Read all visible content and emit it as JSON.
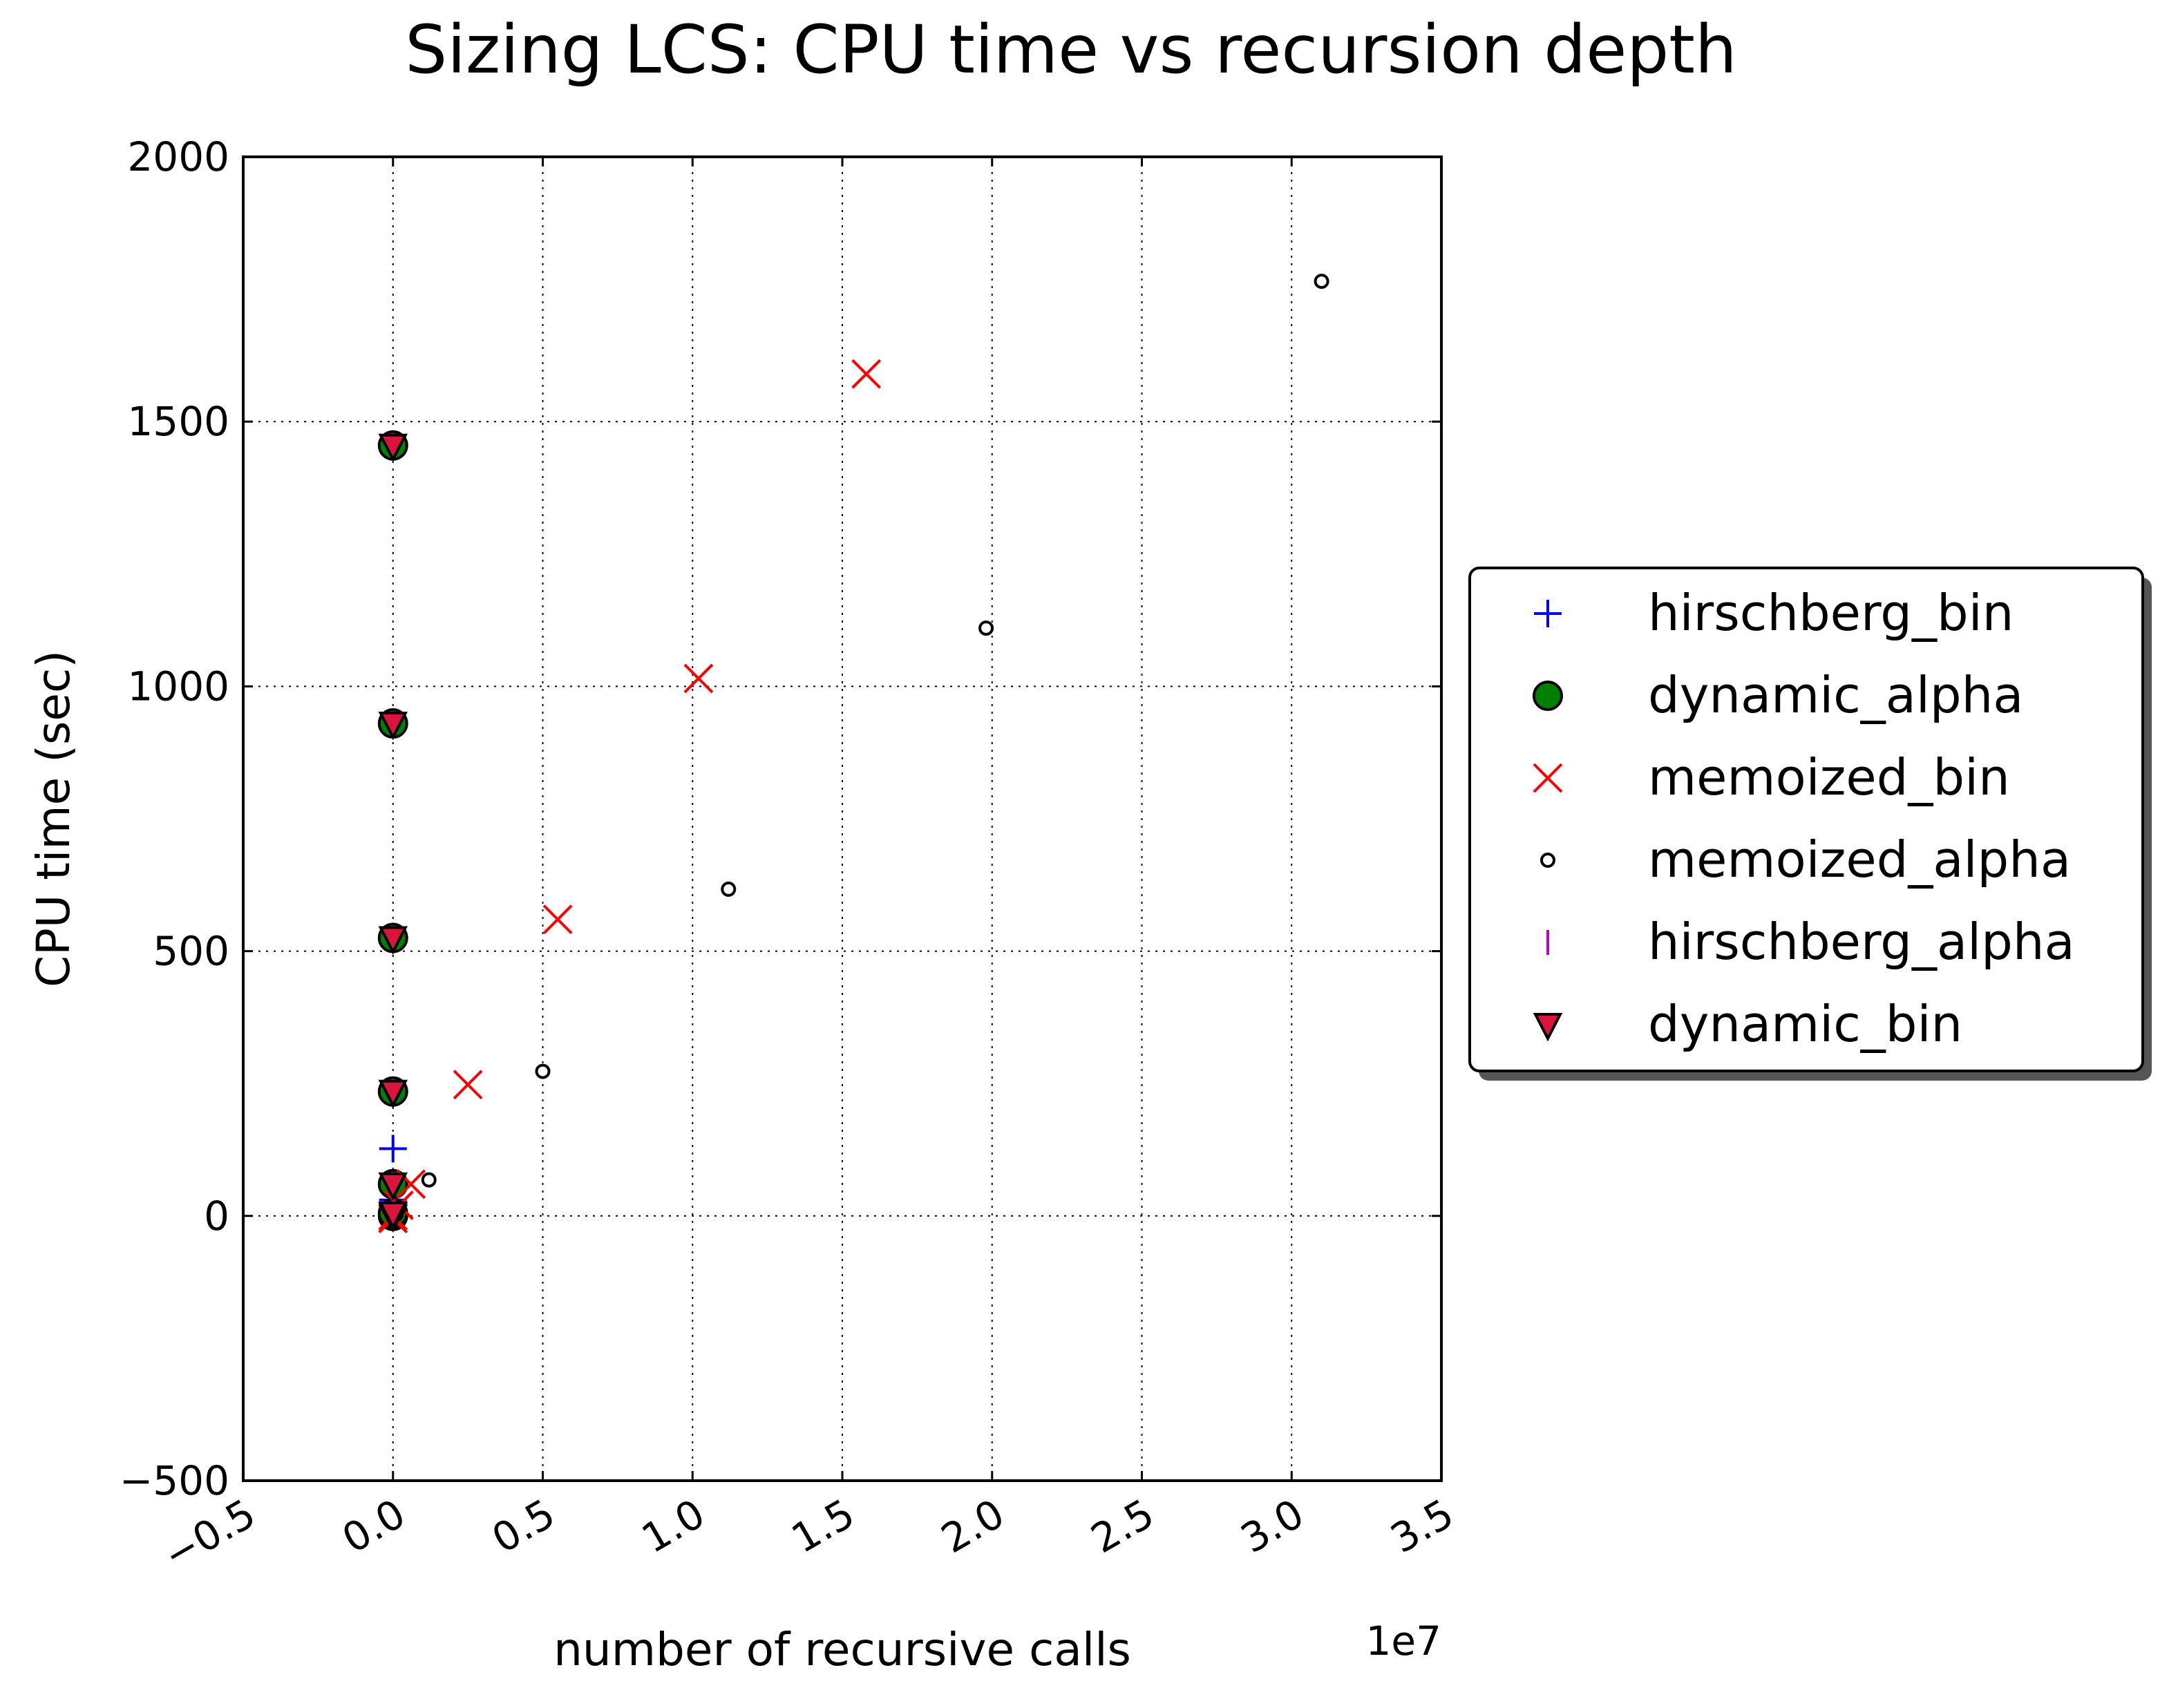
{
  "chart_data": {
    "type": "scatter",
    "title": "Sizing LCS: CPU time vs recursion depth",
    "xlabel": "number of recursive calls",
    "ylabel": "CPU time (sec)",
    "x_offset_label": "1e7",
    "xlim": [
      -0.5,
      3.5
    ],
    "ylim": [
      -500,
      2000
    ],
    "xticks": [
      -0.5,
      0.0,
      0.5,
      1.0,
      1.5,
      2.0,
      2.5,
      3.0,
      3.5
    ],
    "xtick_labels": [
      "−0.5",
      "0.0",
      "0.5",
      "1.0",
      "1.5",
      "2.0",
      "2.5",
      "3.0",
      "3.5"
    ],
    "yticks": [
      -500,
      0,
      500,
      1000,
      1500,
      2000
    ],
    "ytick_labels": [
      "−500",
      "0",
      "500",
      "1000",
      "1500",
      "2000"
    ],
    "grid": true,
    "legend_position": "outside-right",
    "series": [
      {
        "name": "hirschberg_bin",
        "marker": "plus",
        "color": "#0000ff",
        "points": [
          [
            0.0,
            0
          ],
          [
            0.0,
            2
          ],
          [
            0.0,
            8
          ],
          [
            0.0,
            30
          ],
          [
            0.0,
            127
          ]
        ]
      },
      {
        "name": "dynamic_alpha",
        "marker": "circle",
        "color": "#008000",
        "points": [
          [
            0.0,
            0
          ],
          [
            0.0,
            5
          ],
          [
            0.0,
            60
          ],
          [
            0.0,
            235
          ],
          [
            0.0,
            525
          ],
          [
            0.0,
            930
          ],
          [
            0.0,
            1455
          ]
        ]
      },
      {
        "name": "memoized_bin",
        "marker": "x",
        "color": "#ff0000",
        "points": [
          [
            0.0,
            0
          ],
          [
            0.0,
            -5
          ],
          [
            0.02,
            20
          ],
          [
            0.06,
            60
          ],
          [
            0.25,
            248
          ],
          [
            0.55,
            560
          ],
          [
            1.02,
            1015
          ],
          [
            1.58,
            1590
          ]
        ]
      },
      {
        "name": "memoized_alpha",
        "marker": "small-circle",
        "color": "#ffffff",
        "points": [
          [
            0.0,
            0
          ],
          [
            0.01,
            3
          ],
          [
            0.02,
            15
          ],
          [
            0.12,
            68
          ],
          [
            0.5,
            273
          ],
          [
            1.12,
            617
          ],
          [
            1.98,
            1110
          ],
          [
            3.1,
            1765
          ]
        ]
      },
      {
        "name": "hirschberg_alpha",
        "marker": "vline",
        "color": "#bf00bf",
        "points": [
          [
            0.0,
            0
          ],
          [
            0.0,
            10
          ],
          [
            0.0,
            60
          ],
          [
            0.0,
            235
          ],
          [
            0.0,
            525
          ],
          [
            0.0,
            930
          ],
          [
            0.0,
            1455
          ]
        ]
      },
      {
        "name": "dynamic_bin",
        "marker": "triangle-down",
        "color": "#dc143c",
        "points": [
          [
            0.0,
            0
          ],
          [
            0.0,
            5
          ],
          [
            0.0,
            60
          ],
          [
            0.0,
            235
          ],
          [
            0.0,
            525
          ],
          [
            0.0,
            930
          ],
          [
            0.0,
            1455
          ]
        ]
      }
    ]
  }
}
